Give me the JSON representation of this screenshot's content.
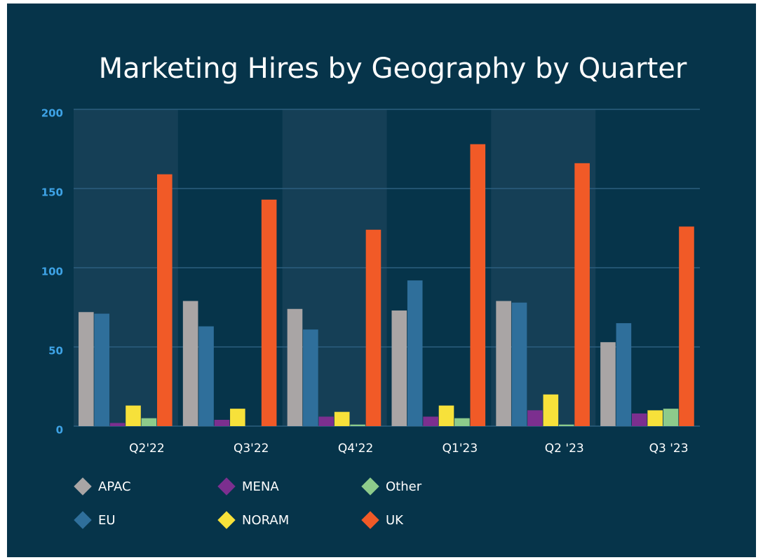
{
  "chart_data": {
    "type": "bar",
    "title": "Marketing Hires by Geography by Quarter",
    "categories": [
      "Q2'22",
      "Q3'22",
      "Q4'22",
      "Q1'23",
      "Q2 '23",
      "Q3 '23"
    ],
    "series": [
      {
        "name": "APAC",
        "color": "#a9a5a5",
        "values": [
          72,
          79,
          74,
          73,
          79,
          53
        ]
      },
      {
        "name": "EU",
        "color": "#2f6f9b",
        "values": [
          71,
          63,
          61,
          92,
          78,
          65
        ]
      },
      {
        "name": "MENA",
        "color": "#7c2f8f",
        "values": [
          2,
          4,
          6,
          6,
          10,
          8
        ]
      },
      {
        "name": "NORAM",
        "color": "#f7e13a",
        "values": [
          13,
          11,
          9,
          13,
          20,
          10
        ]
      },
      {
        "name": "Other",
        "color": "#8dcb8b",
        "values": [
          5,
          0,
          1,
          5,
          1,
          11
        ]
      },
      {
        "name": "UK",
        "color": "#f15a27",
        "values": [
          159,
          143,
          124,
          178,
          166,
          126
        ]
      }
    ],
    "ylim": [
      0,
      200
    ],
    "yticks": [
      0,
      50,
      100,
      150,
      200
    ],
    "grid": true
  }
}
